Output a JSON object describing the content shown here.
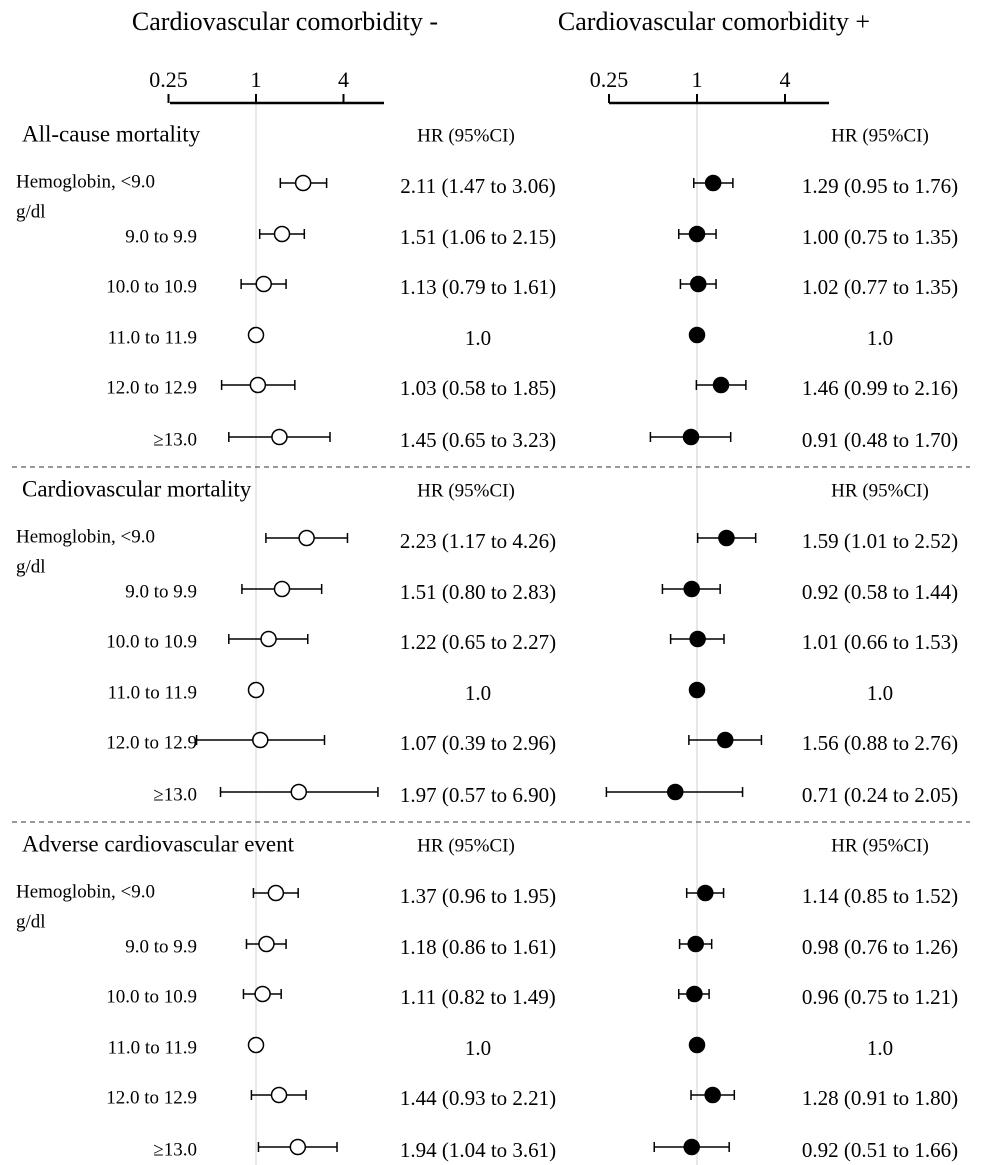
{
  "chart_data": {
    "type": "forest",
    "scale": "log2",
    "panels": [
      {
        "title": "Cardiovascular comorbidity -",
        "marker": "open",
        "xticks": [
          "0.25",
          "1",
          "4"
        ],
        "tick_values": [
          0.25,
          1,
          4
        ],
        "hr_header": "HR (95%CI)"
      },
      {
        "title": "Cardiovascular comorbidity +",
        "marker": "filled",
        "xticks": [
          "0.25",
          "1",
          "4"
        ],
        "tick_values": [
          0.25,
          1,
          4
        ],
        "hr_header": "HR (95%CI)"
      }
    ],
    "categories": [
      "Hemoglobin, <9.0 g/dl",
      "9.0 to 9.9",
      "10.0 to 10.9",
      "11.0 to 11.9",
      "12.0 to 12.9",
      "≥13.0"
    ],
    "category_display": [
      [
        "Hemoglobin, <9.0",
        "g/dl"
      ],
      [
        "9.0 to 9.9"
      ],
      [
        "10.0 to 10.9"
      ],
      [
        "11.0 to 11.9"
      ],
      [
        "12.0 to 12.9"
      ],
      [
        "≥13.0"
      ]
    ],
    "sections": [
      {
        "title": "All-cause mortality",
        "rows": [
          {
            "left": {
              "hr": 2.11,
              "lo": 1.47,
              "hi": 3.06,
              "label": "2.11 (1.47 to 3.06)"
            },
            "right": {
              "hr": 1.29,
              "lo": 0.95,
              "hi": 1.76,
              "label": "1.29 (0.95 to 1.76)"
            }
          },
          {
            "left": {
              "hr": 1.51,
              "lo": 1.06,
              "hi": 2.15,
              "label": "1.51 (1.06 to 2.15)"
            },
            "right": {
              "hr": 1.0,
              "lo": 0.75,
              "hi": 1.35,
              "label": "1.00 (0.75 to 1.35)"
            }
          },
          {
            "left": {
              "hr": 1.13,
              "lo": 0.79,
              "hi": 1.61,
              "label": "1.13 (0.79 to 1.61)"
            },
            "right": {
              "hr": 1.02,
              "lo": 0.77,
              "hi": 1.35,
              "label": "1.02 (0.77 to 1.35)"
            }
          },
          {
            "left": {
              "hr": 1.0,
              "lo": null,
              "hi": null,
              "label": "1.0"
            },
            "right": {
              "hr": 1.0,
              "lo": null,
              "hi": null,
              "label": "1.0"
            }
          },
          {
            "left": {
              "hr": 1.03,
              "lo": 0.58,
              "hi": 1.85,
              "label": "1.03 (0.58 to 1.85)"
            },
            "right": {
              "hr": 1.46,
              "lo": 0.99,
              "hi": 2.16,
              "label": "1.46 (0.99 to 2.16)"
            }
          },
          {
            "left": {
              "hr": 1.45,
              "lo": 0.65,
              "hi": 3.23,
              "label": "1.45 (0.65 to 3.23)"
            },
            "right": {
              "hr": 0.91,
              "lo": 0.48,
              "hi": 1.7,
              "label": "0.91 (0.48 to 1.70)"
            }
          }
        ]
      },
      {
        "title": "Cardiovascular mortality",
        "rows": [
          {
            "left": {
              "hr": 2.23,
              "lo": 1.17,
              "hi": 4.26,
              "label": "2.23 (1.17 to 4.26)"
            },
            "right": {
              "hr": 1.59,
              "lo": 1.01,
              "hi": 2.52,
              "label": "1.59 (1.01 to 2.52)"
            }
          },
          {
            "left": {
              "hr": 1.51,
              "lo": 0.8,
              "hi": 2.83,
              "label": "1.51 (0.80 to 2.83)"
            },
            "right": {
              "hr": 0.92,
              "lo": 0.58,
              "hi": 1.44,
              "label": "0.92 (0.58 to 1.44)"
            }
          },
          {
            "left": {
              "hr": 1.22,
              "lo": 0.65,
              "hi": 2.27,
              "label": "1.22 (0.65 to 2.27)"
            },
            "right": {
              "hr": 1.01,
              "lo": 0.66,
              "hi": 1.53,
              "label": "1.01 (0.66 to 1.53)"
            }
          },
          {
            "left": {
              "hr": 1.0,
              "lo": null,
              "hi": null,
              "label": "1.0"
            },
            "right": {
              "hr": 1.0,
              "lo": null,
              "hi": null,
              "label": "1.0"
            }
          },
          {
            "left": {
              "hr": 1.07,
              "lo": 0.39,
              "hi": 2.96,
              "label": "1.07 (0.39 to 2.96)"
            },
            "right": {
              "hr": 1.56,
              "lo": 0.88,
              "hi": 2.76,
              "label": "1.56 (0.88 to 2.76)"
            }
          },
          {
            "left": {
              "hr": 1.97,
              "lo": 0.57,
              "hi": 6.9,
              "label": "1.97 (0.57 to 6.90)"
            },
            "right": {
              "hr": 0.71,
              "lo": 0.24,
              "hi": 2.05,
              "label": "0.71 (0.24 to 2.05)"
            }
          }
        ]
      },
      {
        "title": "Adverse cardiovascular event",
        "rows": [
          {
            "left": {
              "hr": 1.37,
              "lo": 0.96,
              "hi": 1.95,
              "label": "1.37 (0.96 to 1.95)"
            },
            "right": {
              "hr": 1.14,
              "lo": 0.85,
              "hi": 1.52,
              "label": "1.14 (0.85 to 1.52)"
            }
          },
          {
            "left": {
              "hr": 1.18,
              "lo": 0.86,
              "hi": 1.61,
              "label": "1.18 (0.86 to 1.61)"
            },
            "right": {
              "hr": 0.98,
              "lo": 0.76,
              "hi": 1.26,
              "label": "0.98 (0.76 to 1.26)"
            }
          },
          {
            "left": {
              "hr": 1.11,
              "lo": 0.82,
              "hi": 1.49,
              "label": "1.11 (0.82 to 1.49)"
            },
            "right": {
              "hr": 0.96,
              "lo": 0.75,
              "hi": 1.21,
              "label": "0.96 (0.75 to 1.21)"
            }
          },
          {
            "left": {
              "hr": 1.0,
              "lo": null,
              "hi": null,
              "label": "1.0"
            },
            "right": {
              "hr": 1.0,
              "lo": null,
              "hi": null,
              "label": "1.0"
            }
          },
          {
            "left": {
              "hr": 1.44,
              "lo": 0.93,
              "hi": 2.21,
              "label": "1.44 (0.93 to 2.21)"
            },
            "right": {
              "hr": 1.28,
              "lo": 0.91,
              "hi": 1.8,
              "label": "1.28 (0.91 to 1.80)"
            }
          },
          {
            "left": {
              "hr": 1.94,
              "lo": 1.04,
              "hi": 3.61,
              "label": "1.94 (1.04 to 3.61)"
            },
            "right": {
              "hr": 0.92,
              "lo": 0.51,
              "hi": 1.66,
              "label": "0.92 (0.51 to 1.66)"
            }
          }
        ]
      }
    ]
  }
}
